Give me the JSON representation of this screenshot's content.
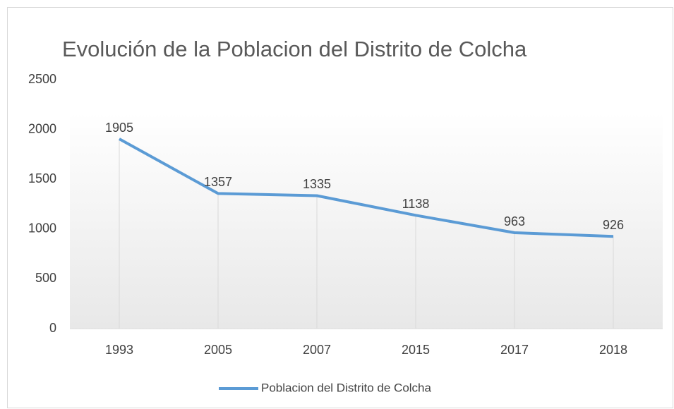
{
  "chart_data": {
    "type": "line",
    "title": "Evolución de la Poblacion del Distrito de Colcha",
    "categories": [
      "1993",
      "2005",
      "2007",
      "2015",
      "2017",
      "2018"
    ],
    "series": [
      {
        "name": "Poblacion del Distrito de Colcha",
        "color": "#5b9bd5",
        "values": [
          1905,
          1357,
          1335,
          1138,
          963,
          926
        ]
      }
    ],
    "ylim": [
      0,
      2500
    ],
    "yticks": [
      0,
      500,
      1000,
      1500,
      2000,
      2500
    ],
    "grid": false,
    "drop_lines": true,
    "data_labels": true,
    "legend": "bottom"
  }
}
